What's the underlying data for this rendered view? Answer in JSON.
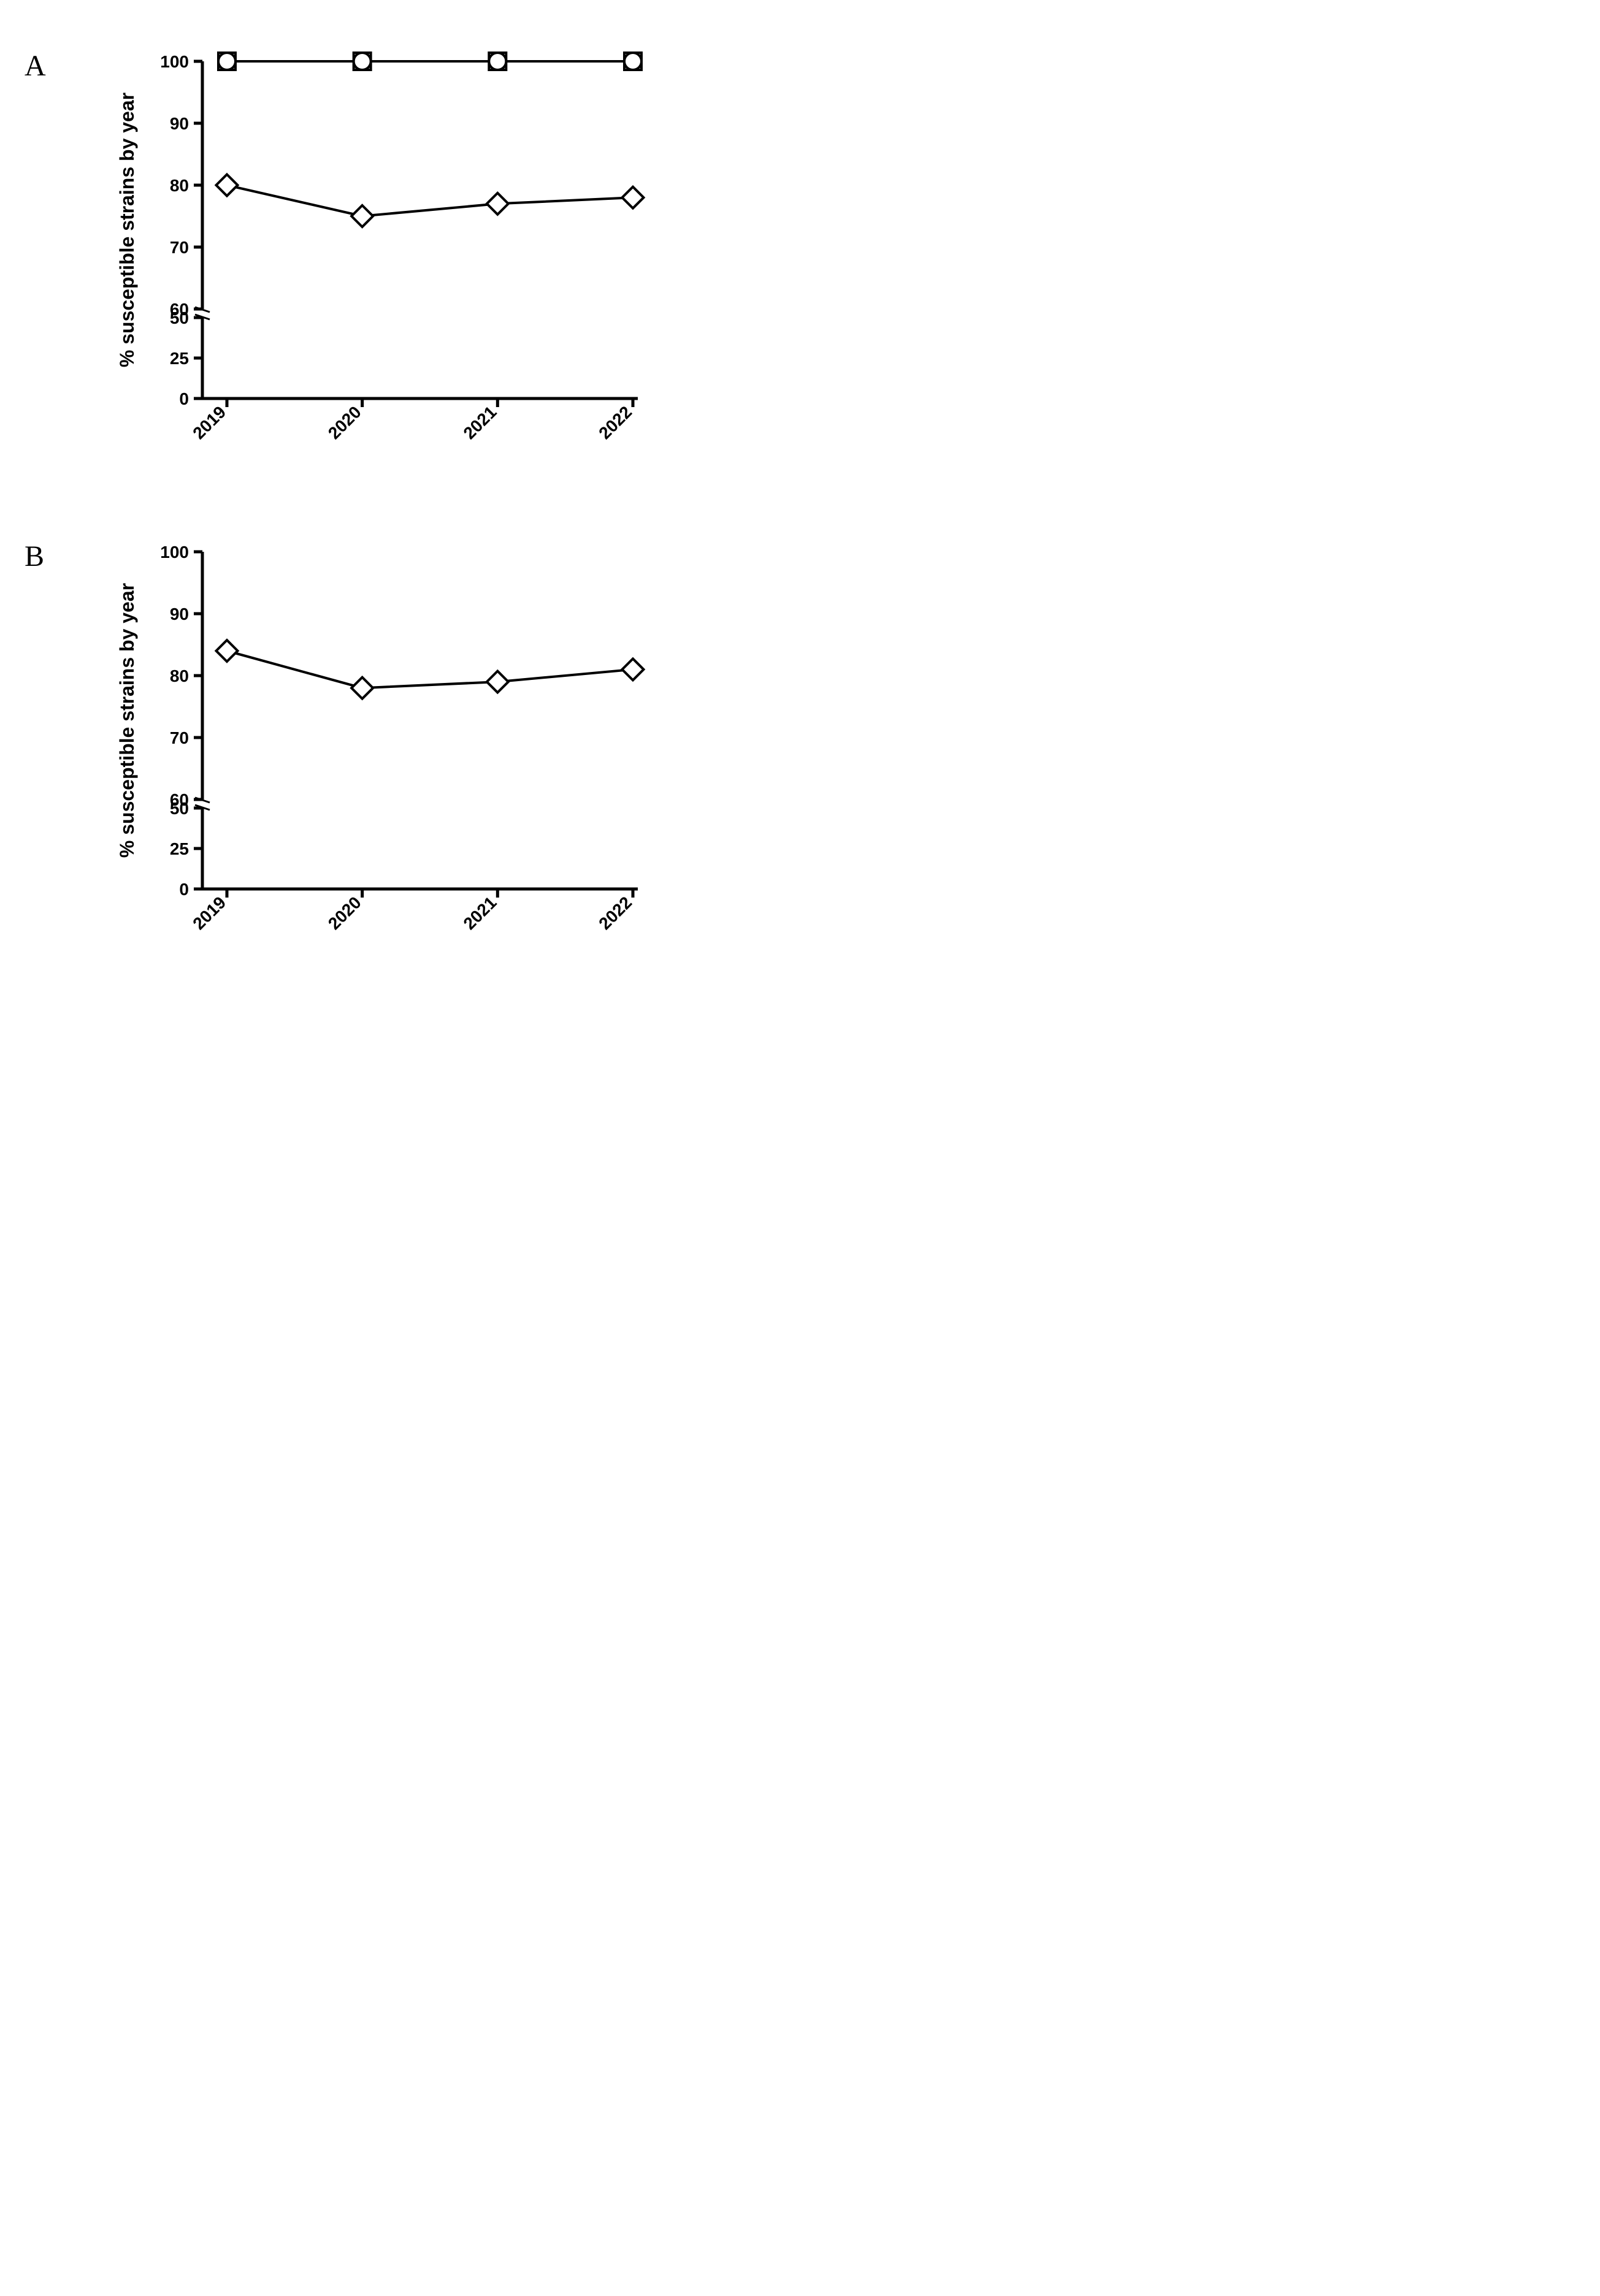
{
  "panelA": {
    "label": "A",
    "type": "line",
    "ylabel": "% susceptible strains by year",
    "categories": [
      "2019",
      "2020",
      "2021",
      "2022"
    ],
    "series": [
      {
        "name": "series-square",
        "marker": "square",
        "values": [
          100,
          100,
          100,
          100
        ],
        "color": "#000000"
      },
      {
        "name": "series-circle",
        "marker": "circle",
        "values": [
          100,
          100,
          100,
          100
        ],
        "color": "#000000"
      },
      {
        "name": "series-diamond",
        "marker": "diamond",
        "values": [
          80,
          75,
          77,
          78
        ],
        "color": "#000000"
      }
    ],
    "yticks": [
      0,
      25,
      50,
      60,
      70,
      80,
      90,
      100
    ],
    "y_break_between": [
      50,
      60
    ],
    "ylim_lower": [
      0,
      50
    ],
    "ylim_upper": [
      60,
      100
    ],
    "line_width": 4,
    "marker_size": 14,
    "marker_stroke": 4,
    "background_color": "#ffffff",
    "axis_color": "#000000",
    "tick_fontsize": 28,
    "label_fontsize": 32,
    "panel_label_fontsize": 48
  },
  "panelB": {
    "label": "B",
    "type": "line",
    "ylabel": "% susceptible strains by year",
    "categories": [
      "2019",
      "2020",
      "2021",
      "2022"
    ],
    "series": [
      {
        "name": "series-diamond",
        "marker": "diamond",
        "values": [
          84,
          78,
          79,
          81
        ],
        "color": "#000000"
      }
    ],
    "yticks": [
      0,
      25,
      50,
      60,
      70,
      80,
      90,
      100
    ],
    "y_break_between": [
      50,
      60
    ],
    "ylim_lower": [
      0,
      50
    ],
    "ylim_upper": [
      60,
      100
    ],
    "line_width": 4,
    "marker_size": 14,
    "marker_stroke": 4,
    "background_color": "#ffffff",
    "axis_color": "#000000",
    "tick_fontsize": 28,
    "label_fontsize": 32,
    "panel_label_fontsize": 48
  }
}
